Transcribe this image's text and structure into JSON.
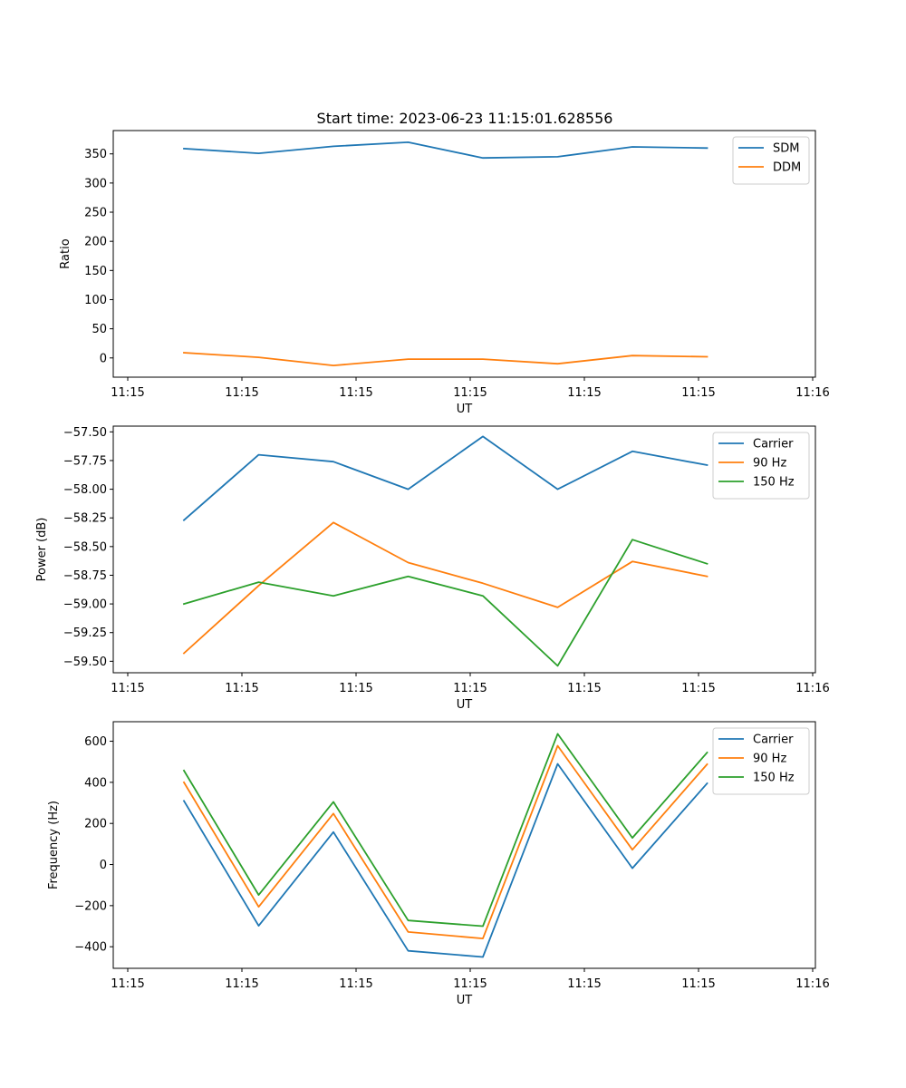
{
  "title": "Start time: 2023-06-23 11:15:01.628556",
  "colors": {
    "blue": "#1f77b4",
    "orange": "#ff7f0e",
    "green": "#2ca02c"
  },
  "chart_data": [
    {
      "type": "line",
      "xlabel": "UT",
      "ylabel": "Ratio",
      "x_tick_labels": [
        "11:15",
        "11:15",
        "11:15",
        "11:15",
        "11:15",
        "11:15",
        "11:16"
      ],
      "yticks": [
        0,
        50,
        100,
        150,
        200,
        250,
        300,
        350
      ],
      "ylim": [
        -33,
        390
      ],
      "legend": "top-right",
      "series": [
        {
          "name": "SDM",
          "color": "#1f77b4",
          "values": [
            359,
            351,
            363,
            370,
            343,
            345,
            362,
            360
          ]
        },
        {
          "name": "DDM",
          "color": "#ff7f0e",
          "values": [
            9,
            1,
            -13,
            -2,
            -2,
            -10,
            4,
            2
          ]
        }
      ]
    },
    {
      "type": "line",
      "xlabel": "UT",
      "ylabel": "Power (dB)",
      "x_tick_labels": [
        "11:15",
        "11:15",
        "11:15",
        "11:15",
        "11:15",
        "11:15",
        "11:16"
      ],
      "yticks": [
        -57.5,
        -57.75,
        -58.0,
        -58.25,
        -58.5,
        -58.75,
        -59.0,
        -59.25,
        -59.5
      ],
      "ytick_labels": [
        "−57.50",
        "−57.75",
        "−58.00",
        "−58.25",
        "−58.50",
        "−58.75",
        "−59.00",
        "−59.25",
        "−59.50"
      ],
      "ylim": [
        -59.6,
        -57.45
      ],
      "legend": "top-right",
      "series": [
        {
          "name": "Carrier",
          "color": "#1f77b4",
          "values": [
            -58.27,
            -57.7,
            -57.76,
            -58.0,
            -57.54,
            -58.0,
            -57.67,
            -57.79
          ]
        },
        {
          "name": "90 Hz",
          "color": "#ff7f0e",
          "values": [
            -59.43,
            -58.84,
            -58.29,
            -58.64,
            -58.82,
            -59.03,
            -58.63,
            -58.76
          ]
        },
        {
          "name": "150 Hz",
          "color": "#2ca02c",
          "values": [
            -59.0,
            -58.81,
            -58.93,
            -58.76,
            -58.93,
            -59.54,
            -58.44,
            -58.65
          ]
        }
      ]
    },
    {
      "type": "line",
      "xlabel": "UT",
      "ylabel": "Frequency (Hz)",
      "x_tick_labels": [
        "11:15",
        "11:15",
        "11:15",
        "11:15",
        "11:15",
        "11:15",
        "11:16"
      ],
      "yticks": [
        -400,
        -200,
        0,
        200,
        400,
        600
      ],
      "ytick_labels": [
        "−400",
        "−200",
        "0",
        "200",
        "400",
        "600"
      ],
      "ylim": [
        -505,
        695
      ],
      "legend": "top-right",
      "series": [
        {
          "name": "Carrier",
          "color": "#1f77b4",
          "values": [
            310,
            -298,
            158,
            -420,
            -450,
            490,
            -18,
            395
          ]
        },
        {
          "name": "90 Hz",
          "color": "#ff7f0e",
          "values": [
            400,
            -206,
            248,
            -328,
            -360,
            578,
            72,
            488
          ]
        },
        {
          "name": "150 Hz",
          "color": "#2ca02c",
          "values": [
            457,
            -148,
            305,
            -272,
            -300,
            636,
            130,
            545
          ]
        }
      ]
    }
  ]
}
